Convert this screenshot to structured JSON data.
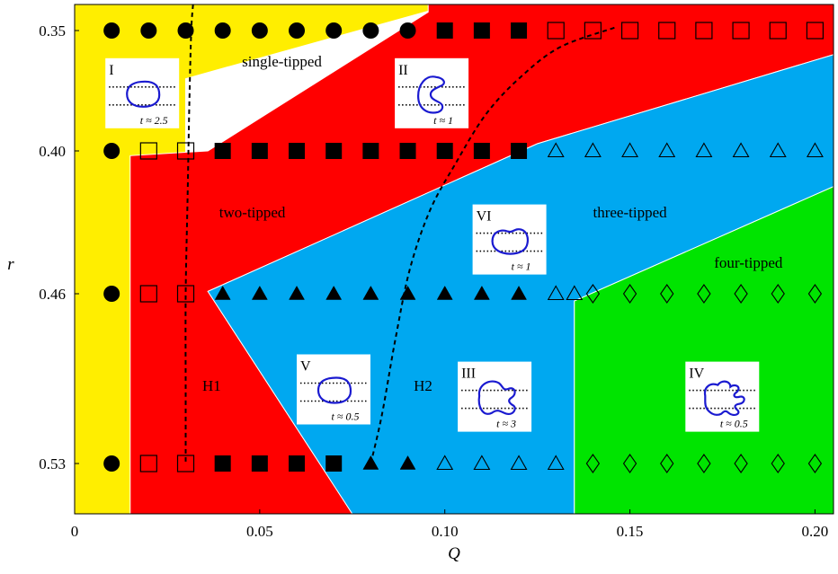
{
  "chart_data": {
    "type": "scatter",
    "xlabel": "Q",
    "ylabel": "r",
    "xlim": [
      0,
      0.205
    ],
    "x_ticks": [
      {
        "value": 0,
        "label": "0"
      },
      {
        "value": 0.05,
        "label": "0.05"
      },
      {
        "value": 0.1,
        "label": "0.10"
      },
      {
        "value": 0.15,
        "label": "0.15"
      },
      {
        "value": 0.2,
        "label": "0.20"
      }
    ],
    "y_ticks": [
      {
        "value": 0.35,
        "label": "0.35"
      },
      {
        "value": 0.4,
        "label": "0.40"
      },
      {
        "value": 0.46,
        "label": "0.46"
      },
      {
        "value": 0.53,
        "label": "0.53"
      }
    ],
    "colors": {
      "single-tipped": "#ffee00",
      "two-tipped": "#ff0000",
      "three-tipped": "#00a8f0",
      "four-tipped": "#00e400"
    },
    "region_labels": [
      {
        "text": "single-tipped",
        "x": 0.056,
        "y": 0.365
      },
      {
        "text": "two-tipped",
        "x": 0.048,
        "y": 0.428
      },
      {
        "text": "three-tipped",
        "x": 0.15,
        "y": 0.428
      },
      {
        "text": "four-tipped",
        "x": 0.182,
        "y": 0.449
      }
    ],
    "regions": [
      {
        "name": "single-tipped",
        "color": "#ffee00",
        "polygon": [
          [
            0,
            0.333
          ],
          [
            0.096,
            0.333
          ],
          [
            0.096,
            0.337
          ],
          [
            0.03,
            0.37
          ],
          [
            0.03,
            0.545
          ],
          [
            0,
            0.545
          ]
        ]
      },
      {
        "name": "two-tipped",
        "color": "#ff0000",
        "polygon": [
          [
            0.0955,
            0.333
          ],
          [
            0.205,
            0.333
          ],
          [
            0.205,
            0.36
          ],
          [
            0.125,
            0.397
          ],
          [
            0.036,
            0.459
          ],
          [
            0.075,
            0.545
          ],
          [
            0.015,
            0.545
          ],
          [
            0.015,
            0.402
          ],
          [
            0.036,
            0.4
          ],
          [
            0.0955,
            0.338
          ]
        ]
      },
      {
        "name": "three-tipped",
        "color": "#00a8f0",
        "polygon": [
          [
            0.205,
            0.36
          ],
          [
            0.205,
            0.415
          ],
          [
            0.135,
            0.463
          ],
          [
            0.135,
            0.545
          ],
          [
            0.075,
            0.545
          ],
          [
            0.036,
            0.459
          ],
          [
            0.125,
            0.397
          ]
        ]
      },
      {
        "name": "four-tipped",
        "color": "#00e400",
        "polygon": [
          [
            0.205,
            0.415
          ],
          [
            0.205,
            0.545
          ],
          [
            0.135,
            0.545
          ],
          [
            0.135,
            0.463
          ]
        ]
      }
    ],
    "series": [
      {
        "marker": "filled-circle",
        "points": [
          [
            0.01,
            0.35
          ],
          [
            0.02,
            0.35
          ],
          [
            0.03,
            0.35
          ],
          [
            0.04,
            0.35
          ],
          [
            0.05,
            0.35
          ],
          [
            0.06,
            0.35
          ],
          [
            0.07,
            0.35
          ],
          [
            0.08,
            0.35
          ],
          [
            0.09,
            0.35
          ],
          [
            0.01,
            0.4
          ],
          [
            0.01,
            0.46
          ],
          [
            0.01,
            0.53
          ]
        ]
      },
      {
        "marker": "filled-square",
        "points": [
          [
            0.1,
            0.35
          ],
          [
            0.11,
            0.35
          ],
          [
            0.12,
            0.35
          ],
          [
            0.04,
            0.4
          ],
          [
            0.05,
            0.4
          ],
          [
            0.06,
            0.4
          ],
          [
            0.07,
            0.4
          ],
          [
            0.08,
            0.4
          ],
          [
            0.09,
            0.4
          ],
          [
            0.1,
            0.4
          ],
          [
            0.11,
            0.4
          ],
          [
            0.12,
            0.4
          ],
          [
            0.04,
            0.53
          ],
          [
            0.05,
            0.53
          ],
          [
            0.06,
            0.53
          ],
          [
            0.07,
            0.53
          ]
        ]
      },
      {
        "marker": "open-square",
        "points": [
          [
            0.13,
            0.35
          ],
          [
            0.14,
            0.35
          ],
          [
            0.15,
            0.35
          ],
          [
            0.16,
            0.35
          ],
          [
            0.17,
            0.35
          ],
          [
            0.18,
            0.35
          ],
          [
            0.19,
            0.35
          ],
          [
            0.2,
            0.35
          ],
          [
            0.02,
            0.4
          ],
          [
            0.03,
            0.4
          ],
          [
            0.02,
            0.46
          ],
          [
            0.03,
            0.46
          ],
          [
            0.02,
            0.53
          ],
          [
            0.03,
            0.53
          ]
        ]
      },
      {
        "marker": "filled-triangle",
        "points": [
          [
            0.04,
            0.46
          ],
          [
            0.05,
            0.46
          ],
          [
            0.06,
            0.46
          ],
          [
            0.07,
            0.46
          ],
          [
            0.08,
            0.46
          ],
          [
            0.09,
            0.46
          ],
          [
            0.1,
            0.46
          ],
          [
            0.11,
            0.46
          ],
          [
            0.12,
            0.46
          ],
          [
            0.08,
            0.53
          ],
          [
            0.09,
            0.53
          ]
        ]
      },
      {
        "marker": "open-triangle",
        "points": [
          [
            0.13,
            0.4
          ],
          [
            0.14,
            0.4
          ],
          [
            0.15,
            0.4
          ],
          [
            0.16,
            0.4
          ],
          [
            0.17,
            0.4
          ],
          [
            0.18,
            0.4
          ],
          [
            0.19,
            0.4
          ],
          [
            0.2,
            0.4
          ],
          [
            0.13,
            0.46
          ],
          [
            0.135,
            0.46
          ],
          [
            0.1,
            0.53
          ],
          [
            0.11,
            0.53
          ],
          [
            0.12,
            0.53
          ],
          [
            0.13,
            0.53
          ]
        ]
      },
      {
        "marker": "open-diamond",
        "points": [
          [
            0.14,
            0.46
          ],
          [
            0.15,
            0.46
          ],
          [
            0.16,
            0.46
          ],
          [
            0.17,
            0.46
          ],
          [
            0.18,
            0.46
          ],
          [
            0.19,
            0.46
          ],
          [
            0.2,
            0.46
          ],
          [
            0.14,
            0.53
          ],
          [
            0.15,
            0.53
          ],
          [
            0.16,
            0.53
          ],
          [
            0.17,
            0.53
          ],
          [
            0.18,
            0.53
          ],
          [
            0.19,
            0.53
          ],
          [
            0.2,
            0.53
          ]
        ]
      }
    ],
    "curves": [
      {
        "label": "H1",
        "label_at": [
          0.0345,
          0.5
        ],
        "points": [
          [
            0.032,
            0.333
          ],
          [
            0.0315,
            0.35
          ],
          [
            0.031,
            0.38
          ],
          [
            0.0305,
            0.42
          ],
          [
            0.03,
            0.46
          ],
          [
            0.03,
            0.5
          ],
          [
            0.03,
            0.53
          ]
        ]
      },
      {
        "label": "H2",
        "label_at": [
          0.0916,
          0.5
        ],
        "points": [
          [
            0.08,
            0.53
          ],
          [
            0.083,
            0.51
          ],
          [
            0.0865,
            0.48
          ],
          [
            0.0905,
            0.45
          ],
          [
            0.096,
            0.425
          ],
          [
            0.103,
            0.405
          ],
          [
            0.111,
            0.385
          ],
          [
            0.12,
            0.37
          ],
          [
            0.131,
            0.357
          ],
          [
            0.146,
            0.348
          ]
        ]
      }
    ],
    "insets": [
      {
        "numeral": "I",
        "caption": "t ≈ 2.5",
        "shape": "oval",
        "anchor": [
          0.0083,
          0.3615
        ]
      },
      {
        "numeral": "II",
        "caption": "t ≈ 1",
        "shape": "crescent",
        "anchor": [
          0.0865,
          0.3615
        ]
      },
      {
        "numeral": "VI",
        "caption": "t ≈ 1",
        "shape": "bean",
        "anchor": [
          0.1075,
          0.4225
        ]
      },
      {
        "numeral": "V",
        "caption": "t ≈ 0.5",
        "shape": "oval",
        "anchor": [
          0.06,
          0.485
        ]
      },
      {
        "numeral": "III",
        "caption": "t ≈ 3",
        "shape": "three-lobe",
        "anchor": [
          0.1035,
          0.488
        ]
      },
      {
        "numeral": "IV",
        "caption": "t ≈ 0.5",
        "shape": "four-lobe",
        "anchor": [
          0.165,
          0.488
        ]
      }
    ]
  }
}
